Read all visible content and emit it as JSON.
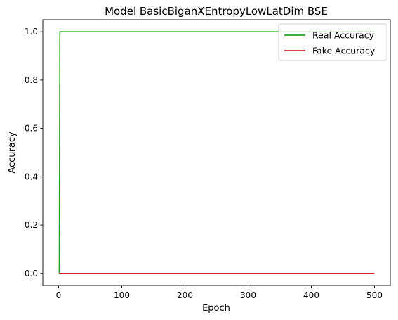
{
  "chart_data": {
    "type": "line",
    "title": "Model BasicBiganXEntropyLowLatDim BSE",
    "xlabel": "Epoch",
    "ylabel": "Accuracy",
    "xlim": [
      -25,
      525
    ],
    "ylim": [
      -0.05,
      1.05
    ],
    "x_ticks": [
      0,
      100,
      200,
      300,
      400,
      500
    ],
    "y_ticks": [
      0.0,
      0.2,
      0.4,
      0.6,
      0.8,
      1.0
    ],
    "x_tick_labels": [
      "0",
      "100",
      "200",
      "300",
      "400",
      "500"
    ],
    "y_tick_labels": [
      "0.0",
      "0.2",
      "0.4",
      "0.6",
      "0.8",
      "1.0"
    ],
    "grid": false,
    "legend_position": "upper right",
    "series": [
      {
        "name": "Real Accuracy",
        "color": "#2ca02c",
        "points": [
          [
            1,
            0.0
          ],
          [
            2,
            1.0
          ],
          [
            500,
            1.0
          ]
        ]
      },
      {
        "name": "Fake Accuracy",
        "color": "#d62728",
        "points": [
          [
            1,
            0.0
          ],
          [
            500,
            0.0
          ]
        ]
      }
    ]
  }
}
